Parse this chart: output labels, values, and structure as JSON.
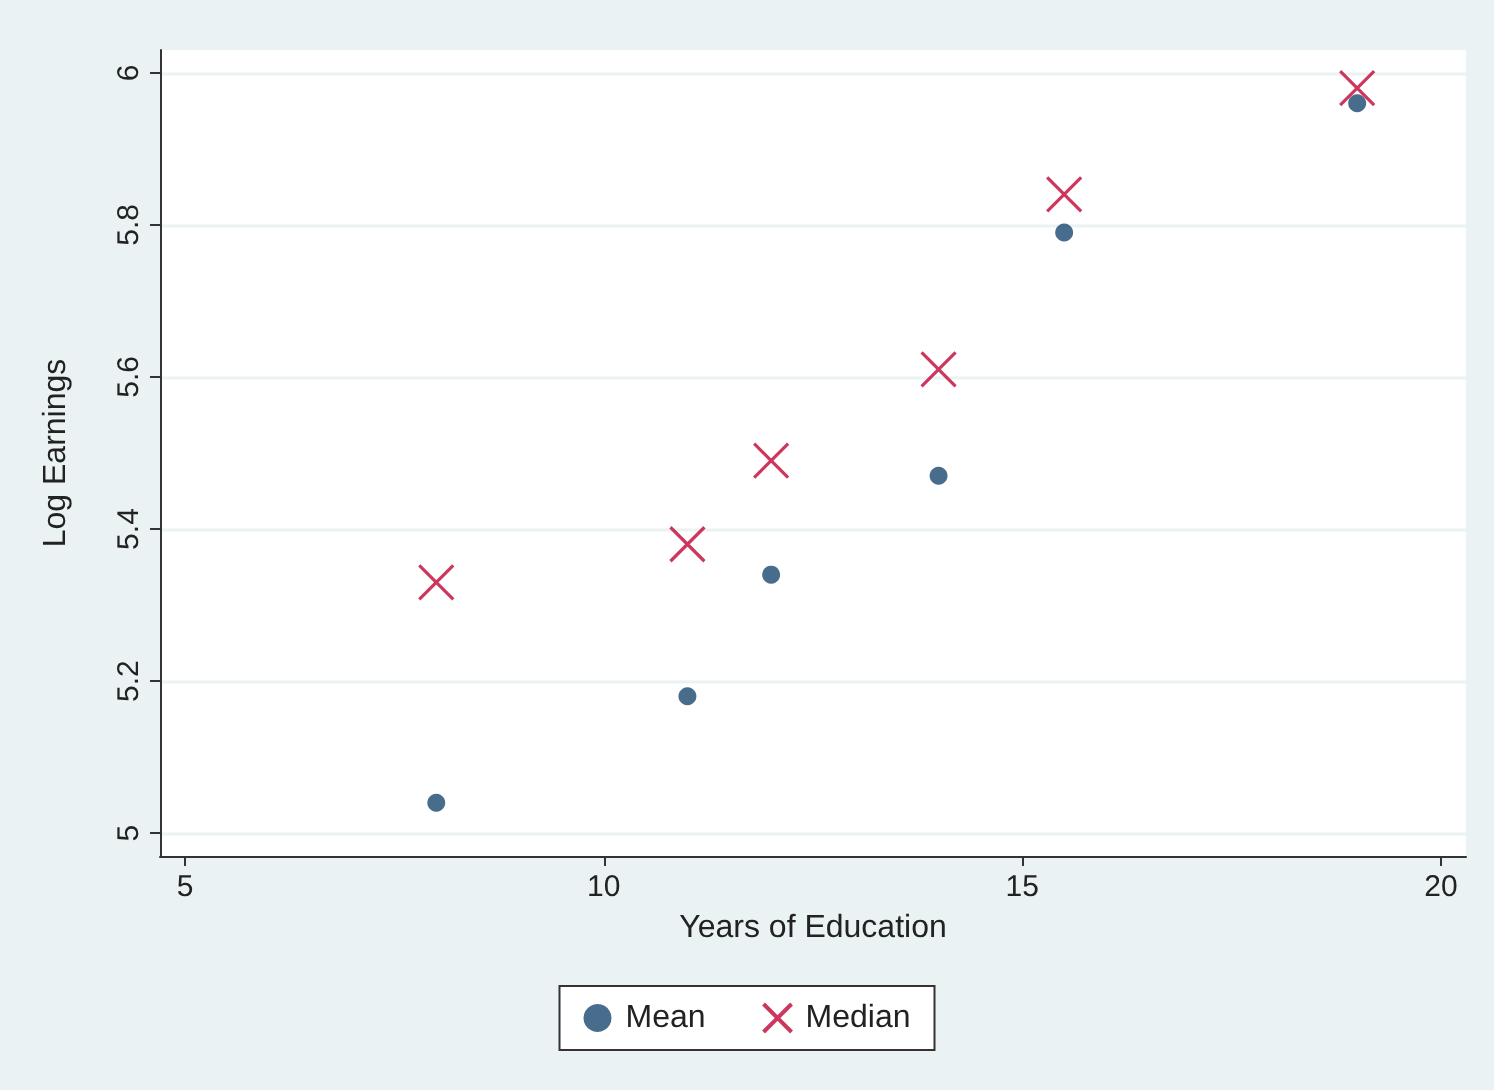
{
  "chart_data": {
    "type": "scatter",
    "xlabel": "Years of Education",
    "ylabel": "Log Earnings",
    "x": [
      8,
      11,
      12,
      14,
      15.5,
      19
    ],
    "series": [
      {
        "name": "Mean",
        "color": "#1a476f",
        "marker": "circle",
        "values": [
          5.04,
          5.18,
          5.34,
          5.47,
          5.79,
          5.96
        ]
      },
      {
        "name": "Median",
        "color": "#c10534",
        "marker": "cross",
        "values": [
          5.33,
          5.38,
          5.49,
          5.61,
          5.84,
          5.98
        ]
      }
    ],
    "xlim": [
      4.7,
      20.3
    ],
    "xticks": [
      5,
      10,
      15,
      20
    ],
    "ylim": [
      4.97,
      6.03
    ],
    "yticks": [
      5,
      5.2,
      5.4,
      5.6,
      5.8,
      6
    ],
    "grid": "y",
    "legend": "bottom"
  }
}
